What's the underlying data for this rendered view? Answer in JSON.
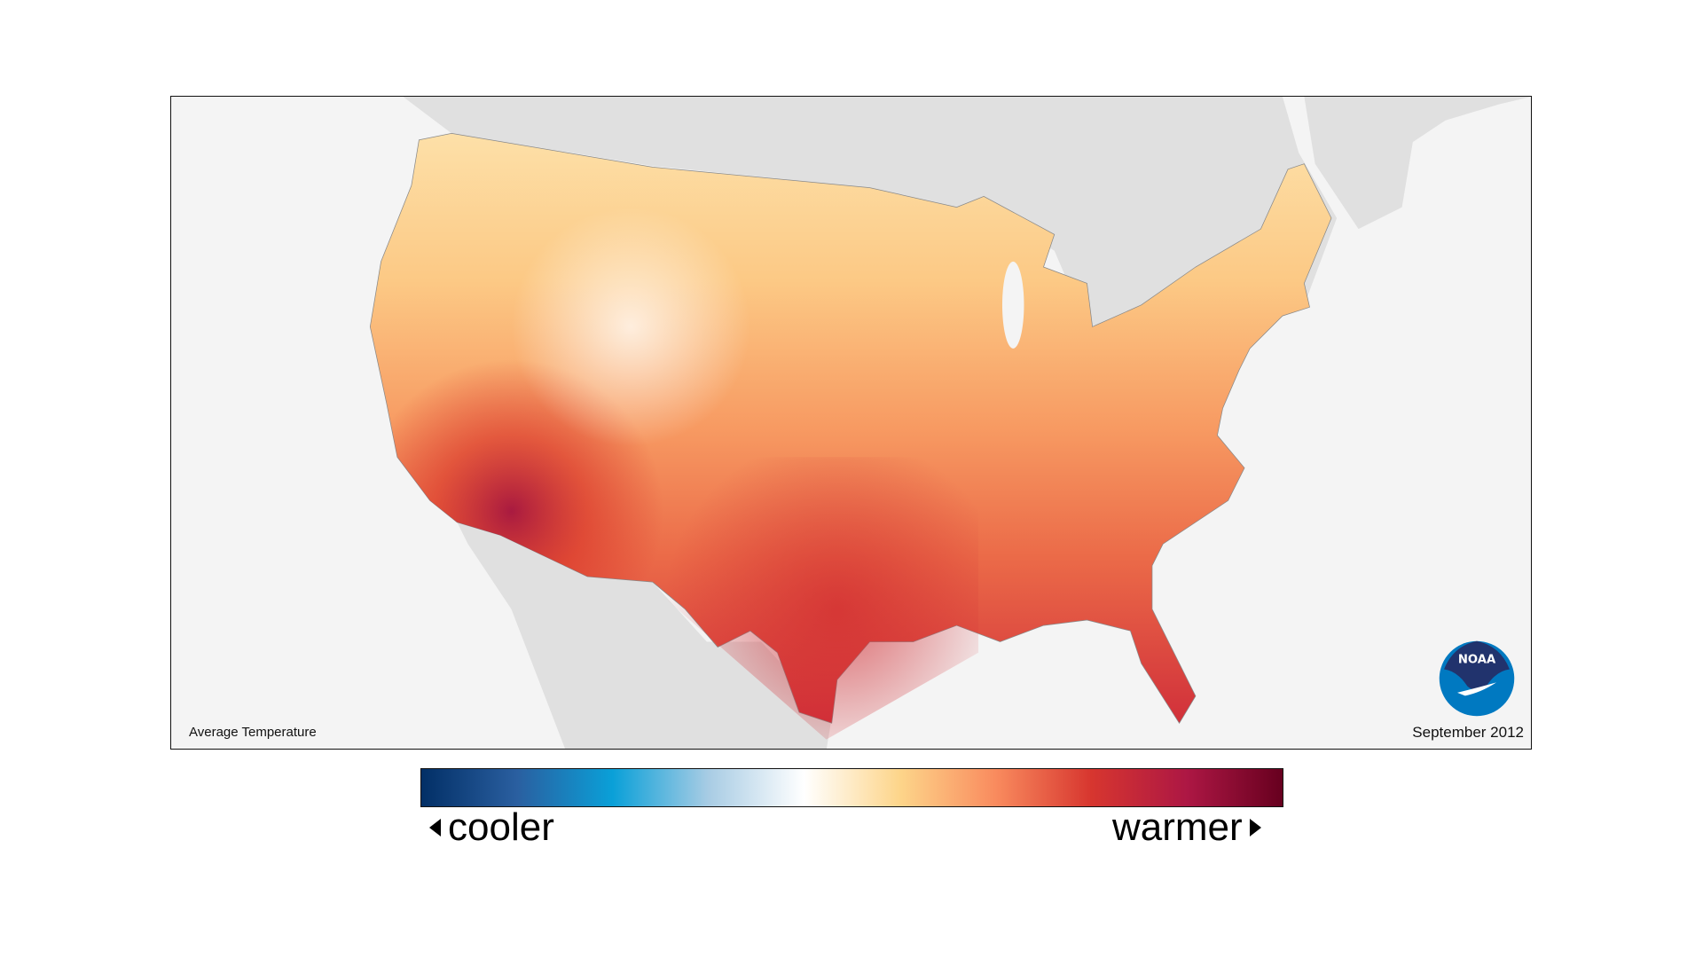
{
  "map": {
    "title": "Average Temperature",
    "date": "September 2012",
    "logo_text": "NOAA",
    "background_land_color": "#e0e0e0",
    "ocean_color": "#f4f4f4"
  },
  "legend": {
    "cooler_label": "cooler",
    "warmer_label": "warmer",
    "colors": [
      "#022f66",
      "#2a5fa0",
      "#0aa0d8",
      "#a8cce4",
      "#ffffff",
      "#fdd58a",
      "#f98b5e",
      "#d7362f",
      "#ad1744",
      "#67001f"
    ]
  }
}
